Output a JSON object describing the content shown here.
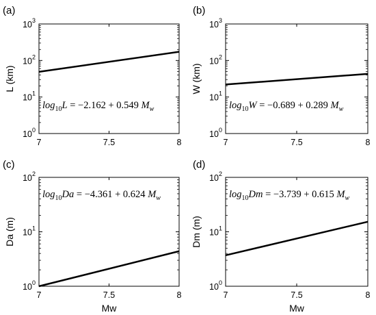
{
  "chart_data": [
    {
      "type": "line",
      "panel_label": "(a)",
      "xlabel": "",
      "ylabel": "L (km)",
      "xlim": [
        7,
        8
      ],
      "ylim": [
        1,
        1000
      ],
      "yscale": "log",
      "x_ticks": [
        "7",
        "7.5",
        "8"
      ],
      "y_ticks": [
        {
          "base": "10",
          "exp": "0"
        },
        {
          "base": "10",
          "exp": "1"
        },
        {
          "base": "10",
          "exp": "2"
        },
        {
          "base": "10",
          "exp": "3"
        }
      ],
      "grid": false,
      "series": [
        {
          "x": [
            7,
            8
          ],
          "y": [
            49,
            173
          ]
        }
      ],
      "equation": {
        "lhs": "log",
        "lhs_sub": "10",
        "var": "L",
        "rest": " = −2.162 + 0.549 ",
        "m": "M",
        "m_sub": "w"
      }
    },
    {
      "type": "line",
      "panel_label": "(b)",
      "xlabel": "",
      "ylabel": "W (km)",
      "xlim": [
        7,
        8
      ],
      "ylim": [
        1,
        1000
      ],
      "yscale": "log",
      "x_ticks": [
        "7",
        "7.5",
        "8"
      ],
      "y_ticks": [
        {
          "base": "10",
          "exp": "0"
        },
        {
          "base": "10",
          "exp": "1"
        },
        {
          "base": "10",
          "exp": "2"
        },
        {
          "base": "10",
          "exp": "3"
        }
      ],
      "grid": false,
      "series": [
        {
          "x": [
            7,
            8
          ],
          "y": [
            22,
            43
          ]
        }
      ],
      "equation": {
        "lhs": "log",
        "lhs_sub": "10",
        "var": "W",
        "rest": " = −0.689 + 0.289 ",
        "m": "M",
        "m_sub": "w"
      }
    },
    {
      "type": "line",
      "panel_label": "(c)",
      "xlabel": "Mw",
      "ylabel": "Da (m)",
      "xlim": [
        7,
        8
      ],
      "ylim": [
        1,
        100
      ],
      "yscale": "log",
      "x_ticks": [
        "7",
        "7.5",
        "8"
      ],
      "y_ticks": [
        {
          "base": "10",
          "exp": "0"
        },
        {
          "base": "10",
          "exp": "1"
        },
        {
          "base": "10",
          "exp": "2"
        }
      ],
      "grid": false,
      "series": [
        {
          "x": [
            7,
            8
          ],
          "y": [
            1.0,
            4.4
          ]
        }
      ],
      "equation": {
        "lhs": "log",
        "lhs_sub": "10",
        "var": "Da",
        "rest": " = −4.361 + 0.624 ",
        "m": "M",
        "m_sub": "w"
      }
    },
    {
      "type": "line",
      "panel_label": "(d)",
      "xlabel": "Mw",
      "ylabel": "Dm (m)",
      "xlim": [
        7,
        8
      ],
      "ylim": [
        1,
        100
      ],
      "yscale": "log",
      "x_ticks": [
        "7",
        "7.5",
        "8"
      ],
      "y_ticks": [
        {
          "base": "10",
          "exp": "0"
        },
        {
          "base": "10",
          "exp": "1"
        },
        {
          "base": "10",
          "exp": "2"
        }
      ],
      "grid": false,
      "series": [
        {
          "x": [
            7,
            8
          ],
          "y": [
            3.7,
            15.3
          ]
        }
      ],
      "equation": {
        "lhs": "log",
        "lhs_sub": "10",
        "var": "Dm",
        "rest": " = −3.739 + 0.615 ",
        "m": "M",
        "m_sub": "w"
      }
    }
  ]
}
